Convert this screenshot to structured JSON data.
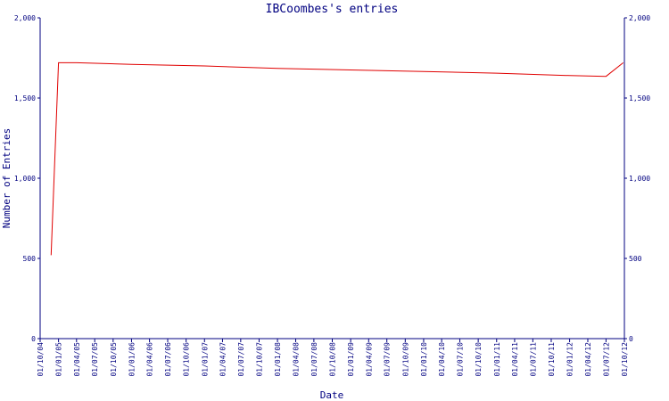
{
  "chart_data": {
    "type": "line",
    "title": "IBCoombes's entries",
    "xlabel": "Date",
    "ylabel": "Number of Entries",
    "ylim": [
      0,
      2000
    ],
    "yticks": [
      0,
      500,
      1000,
      1500,
      2000
    ],
    "ytick_labels": [
      "0",
      "500",
      "1,000",
      "1,500",
      "2,000"
    ],
    "xticks": [
      "01/10/04",
      "01/01/05",
      "01/04/05",
      "01/07/05",
      "01/10/05",
      "01/01/06",
      "01/04/06",
      "01/07/06",
      "01/10/06",
      "01/01/07",
      "01/04/07",
      "01/07/07",
      "01/10/07",
      "01/01/08",
      "01/04/08",
      "01/07/08",
      "01/10/08",
      "01/01/09",
      "01/04/09",
      "01/07/09",
      "01/10/09",
      "01/01/10",
      "01/04/10",
      "01/07/10",
      "01/10/10",
      "01/01/11",
      "01/04/11",
      "01/07/11",
      "01/10/11",
      "01/01/12",
      "01/04/12",
      "01/07/12",
      "01/10/12"
    ],
    "xlim": [
      "2004-10-01",
      "2012-10-01"
    ],
    "series": [
      {
        "color": "#e00000",
        "points": [
          {
            "x": "2004-11-25",
            "y": 520
          },
          {
            "x": "2005-01-01",
            "y": 1720
          },
          {
            "x": "2005-04-01",
            "y": 1720
          },
          {
            "x": "2006-01-01",
            "y": 1710
          },
          {
            "x": "2007-01-01",
            "y": 1700
          },
          {
            "x": "2008-01-01",
            "y": 1685
          },
          {
            "x": "2009-01-01",
            "y": 1675
          },
          {
            "x": "2010-01-01",
            "y": 1665
          },
          {
            "x": "2011-01-01",
            "y": 1655
          },
          {
            "x": "2012-01-01",
            "y": 1640
          },
          {
            "x": "2012-07-01",
            "y": 1635
          },
          {
            "x": "2012-09-25",
            "y": 1720
          }
        ]
      }
    ],
    "grid": false,
    "legend": "none"
  }
}
